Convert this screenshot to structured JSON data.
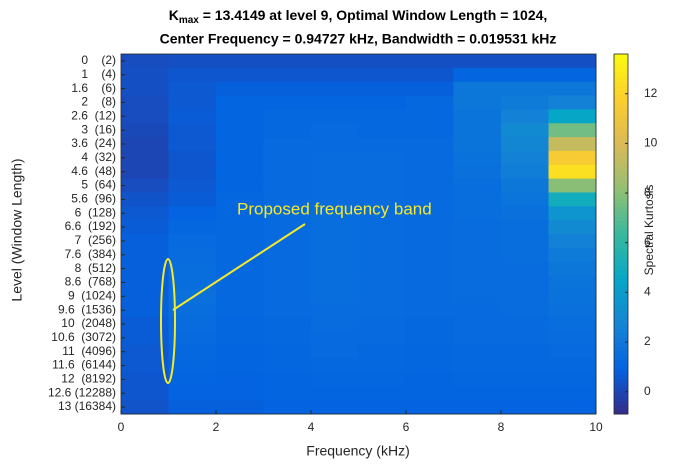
{
  "chart_data": {
    "type": "heatmap",
    "title": {
      "symbol": "K",
      "subscript": "max",
      "text": " = 13.4149 at level 9, Optimal Window Length = 1024,"
    },
    "subtitle": "Center Frequency = 0.94727 kHz, Bandwidth = 0.019531 kHz",
    "x_label": "Frequency (kHz)",
    "y_label": "Level (Window Length)",
    "colorbar_label": "Spectral Kurtosis",
    "annotation": "Proposed frequency band",
    "xlim": [
      0,
      10
    ],
    "xticks": [
      0,
      2,
      4,
      6,
      8,
      10
    ],
    "clim": [
      -0.9,
      13.6
    ],
    "cticks": [
      0,
      2,
      4,
      6,
      8,
      10,
      12
    ],
    "colormap": [
      "#352a87",
      "#0363e1",
      "#1485d4",
      "#06a7c6",
      "#38b99e",
      "#92bf73",
      "#d9ba56",
      "#fcce2e",
      "#f9fb0e"
    ],
    "categories": [
      "0    (2)",
      "1    (4)",
      "1.6    (6)",
      "2    (8)",
      "2.6  (12)",
      "3  (16)",
      "3.6  (24)",
      "4  (32)",
      "4.6  (48)",
      "5  (64)",
      "5.6  (96)",
      "6  (128)",
      "6.6  (192)",
      "7  (256)",
      "7.6  (384)",
      "8  (512)",
      "8.6  (768)",
      "9  (1024)",
      "9.6  (1536)",
      "10  (2048)",
      "10.6  (3072)",
      "11  (4096)",
      "11.6  (6144)",
      "12  (8192)",
      "12.6 (12288)",
      "13 (16384)"
    ],
    "values": [
      [
        0.2,
        0.3,
        0.3,
        0.3,
        0.3,
        0.3,
        0.3,
        0.3,
        0.3,
        0.3
      ],
      [
        0.3,
        0.5,
        0.5,
        0.5,
        0.5,
        0.5,
        0.5,
        1.0,
        1.0,
        1.0
      ],
      [
        0.3,
        0.6,
        0.8,
        0.8,
        0.8,
        0.8,
        0.8,
        2.0,
        2.0,
        2.0
      ],
      [
        0.2,
        0.6,
        1.0,
        1.0,
        1.0,
        1.0,
        1.2,
        2.0,
        2.2,
        2.5
      ],
      [
        0.2,
        0.7,
        1.0,
        1.2,
        1.2,
        1.2,
        1.2,
        1.8,
        2.5,
        4.5
      ],
      [
        0.1,
        0.6,
        1.0,
        1.2,
        1.3,
        1.2,
        1.2,
        1.8,
        3.0,
        7.5
      ],
      [
        0.0,
        0.6,
        1.0,
        1.3,
        1.3,
        1.3,
        1.3,
        1.8,
        2.8,
        9.5
      ],
      [
        0.0,
        0.5,
        1.0,
        1.3,
        1.4,
        1.4,
        1.3,
        1.7,
        2.5,
        11.5
      ],
      [
        0.0,
        0.5,
        1.0,
        1.3,
        1.4,
        1.4,
        1.3,
        1.6,
        2.3,
        12.5
      ],
      [
        0.2,
        0.6,
        1.0,
        1.3,
        1.4,
        1.4,
        1.3,
        1.5,
        2.0,
        8.0
      ],
      [
        0.4,
        0.7,
        1.1,
        1.3,
        1.4,
        1.4,
        1.3,
        1.5,
        1.8,
        5.0
      ],
      [
        0.6,
        0.9,
        1.1,
        1.3,
        1.5,
        1.4,
        1.3,
        1.5,
        1.6,
        3.5
      ],
      [
        0.7,
        1.1,
        1.2,
        1.3,
        1.5,
        1.4,
        1.3,
        1.4,
        1.5,
        3.0
      ],
      [
        0.8,
        1.3,
        1.2,
        1.3,
        1.5,
        1.4,
        1.3,
        1.4,
        1.5,
        2.5
      ],
      [
        0.8,
        1.4,
        1.2,
        1.3,
        1.5,
        1.4,
        1.3,
        1.4,
        1.5,
        2.2
      ],
      [
        0.8,
        1.5,
        1.2,
        1.3,
        1.5,
        1.4,
        1.3,
        1.4,
        1.4,
        2.0
      ],
      [
        0.8,
        1.5,
        1.2,
        1.3,
        1.5,
        1.4,
        1.3,
        1.4,
        1.4,
        1.8
      ],
      [
        0.8,
        1.6,
        1.2,
        1.3,
        1.5,
        1.4,
        1.3,
        1.4,
        1.4,
        1.7
      ],
      [
        0.8,
        1.5,
        1.2,
        1.3,
        1.4,
        1.4,
        1.3,
        1.3,
        1.4,
        1.6
      ],
      [
        0.7,
        1.4,
        1.1,
        1.2,
        1.4,
        1.3,
        1.2,
        1.3,
        1.3,
        1.5
      ],
      [
        0.7,
        1.3,
        1.1,
        1.2,
        1.3,
        1.3,
        1.2,
        1.3,
        1.3,
        1.4
      ],
      [
        0.6,
        1.2,
        1.0,
        1.1,
        1.3,
        1.2,
        1.1,
        1.2,
        1.2,
        1.3
      ],
      [
        0.6,
        1.1,
        1.0,
        1.1,
        1.2,
        1.2,
        1.1,
        1.2,
        1.2,
        1.2
      ],
      [
        0.5,
        1.0,
        0.9,
        1.0,
        1.1,
        1.1,
        1.0,
        1.1,
        1.1,
        1.1
      ],
      [
        0.5,
        0.9,
        0.9,
        1.0,
        1.0,
        1.0,
        1.0,
        1.0,
        1.0,
        1.0
      ],
      [
        0.4,
        0.8,
        0.8,
        0.9,
        0.9,
        0.9,
        0.9,
        0.9,
        0.9,
        0.9
      ]
    ]
  }
}
